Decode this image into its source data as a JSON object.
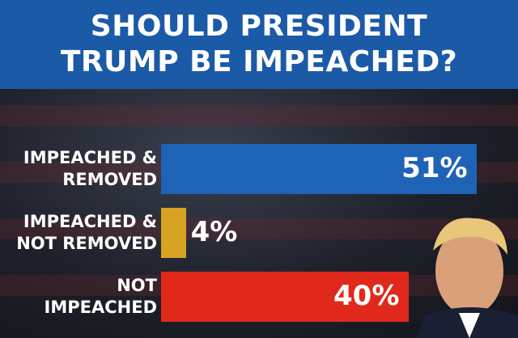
{
  "chart_data": {
    "type": "bar",
    "orientation": "horizontal",
    "title": "SHOULD PRESIDENT TRUMP BE IMPEACHED?",
    "categories": [
      "IMPEACHED & REMOVED",
      "IMPEACHED & NOT REMOVED",
      "NOT IMPEACHED"
    ],
    "values": [
      51,
      4,
      40
    ],
    "value_labels": [
      "51%",
      "4%",
      "40%"
    ],
    "colors": [
      "#1f63b6",
      "#d6a323",
      "#e0291b"
    ]
  }
}
